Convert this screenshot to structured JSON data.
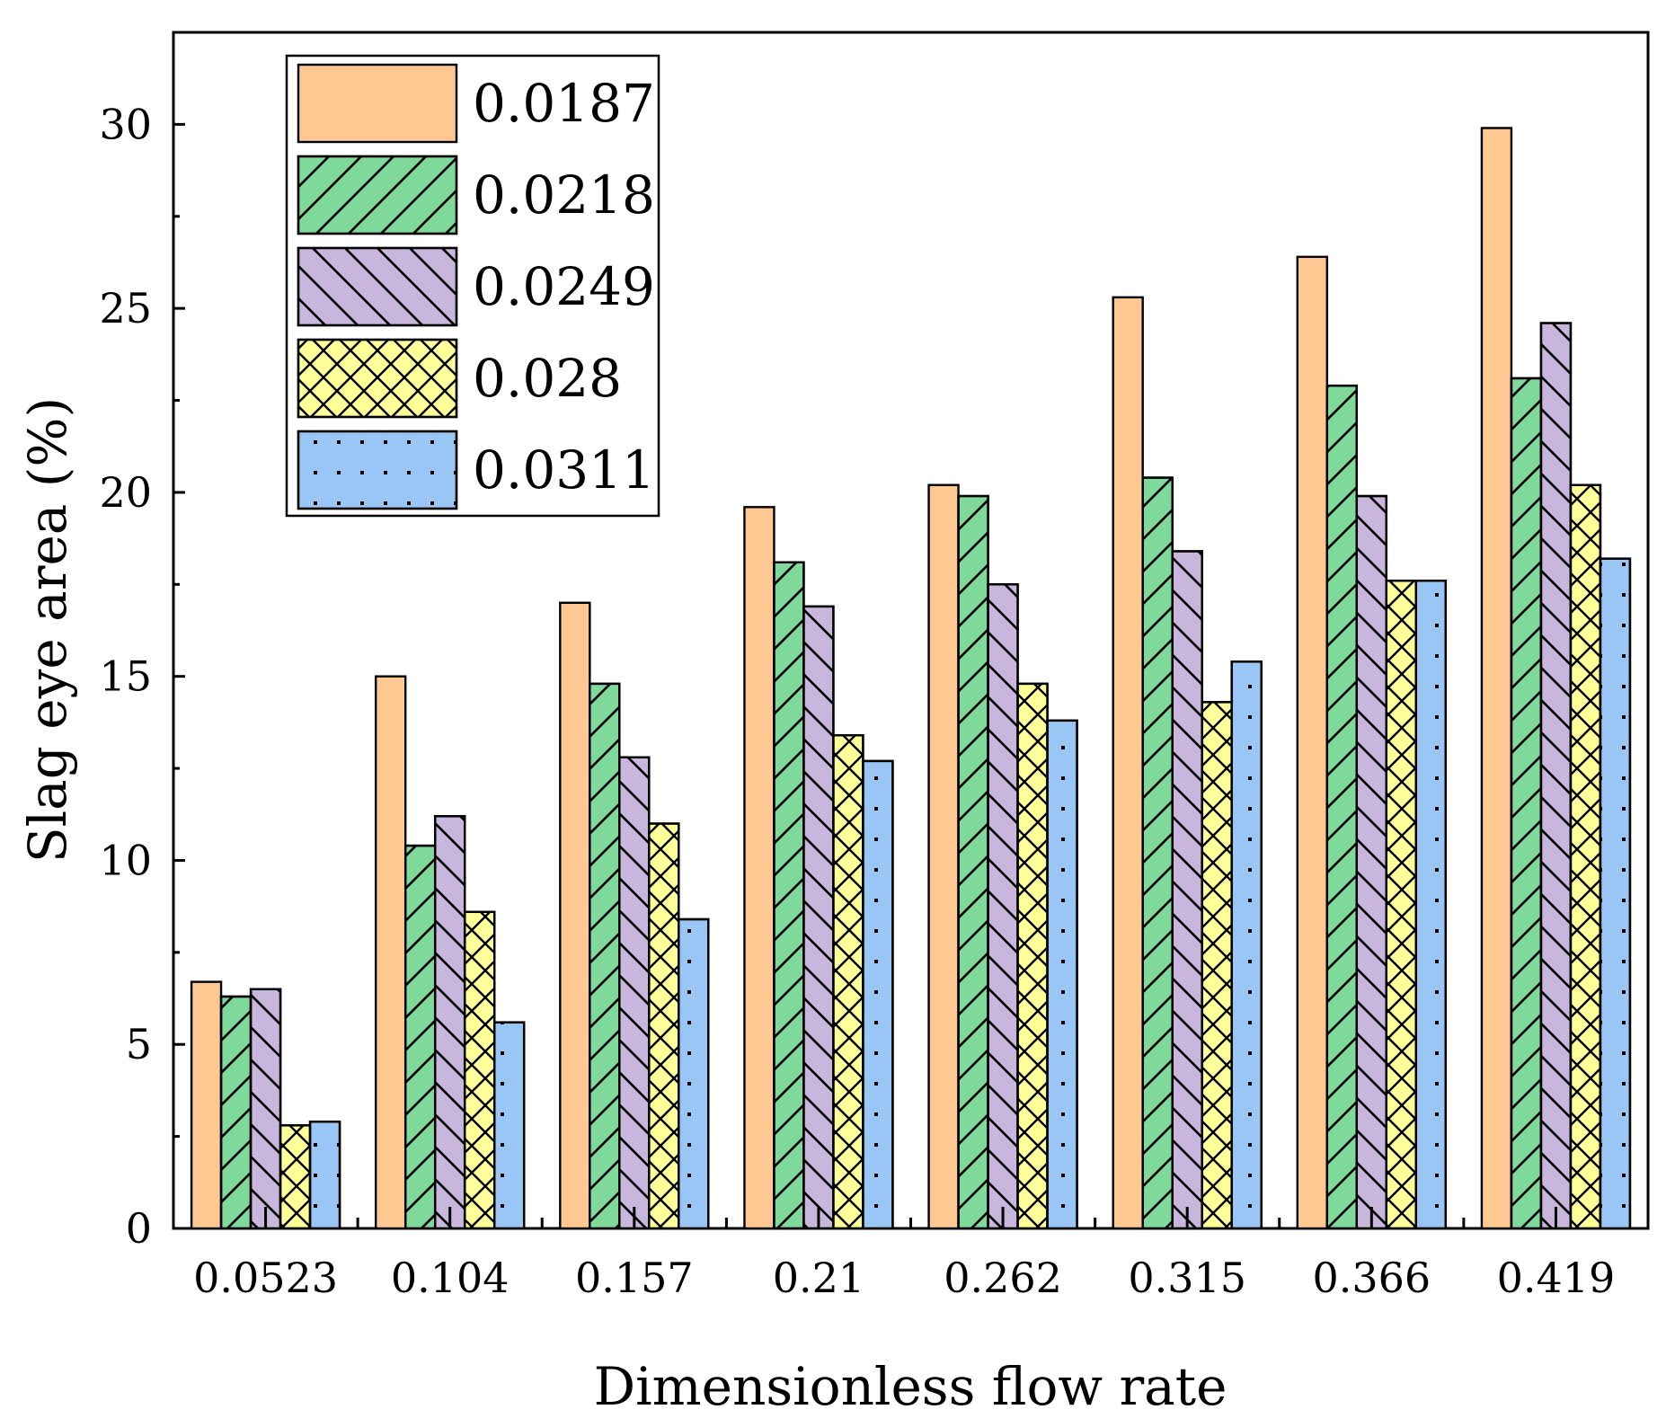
{
  "chart_data": {
    "type": "bar",
    "xlabel": "Dimensionless flow rate",
    "ylabel": "Slag eye area (%)",
    "ylim": [
      0,
      32.5
    ],
    "yticks": [
      0,
      5,
      10,
      15,
      20,
      25,
      30
    ],
    "ytick_labels": [
      "0",
      "5",
      "10",
      "15",
      "20",
      "25",
      "30"
    ],
    "categories": [
      "0.0523",
      "0.104",
      "0.157",
      "0.21",
      "0.262",
      "0.315",
      "0.366",
      "0.419"
    ],
    "legend_position": "top-left",
    "grid": false,
    "series": [
      {
        "name": "0.0187",
        "color": "#ffc892",
        "pattern": "solid",
        "values": [
          6.7,
          15.0,
          17.0,
          19.6,
          20.2,
          25.3,
          26.4,
          29.9
        ]
      },
      {
        "name": "0.0218",
        "color": "#7fd99b",
        "pattern": "forward-diagonal",
        "values": [
          6.3,
          10.4,
          14.8,
          18.1,
          19.9,
          20.4,
          22.9,
          23.1
        ]
      },
      {
        "name": "0.0249",
        "color": "#c8b6dc",
        "pattern": "backward-diagonal",
        "values": [
          6.5,
          11.2,
          12.8,
          16.9,
          17.5,
          18.4,
          19.9,
          24.6
        ]
      },
      {
        "name": "0.028",
        "color": "#ffff99",
        "pattern": "crosshatch",
        "values": [
          2.8,
          8.6,
          11.0,
          13.4,
          14.8,
          14.3,
          17.6,
          20.2
        ]
      },
      {
        "name": "0.0311",
        "color": "#99c6f5",
        "pattern": "dots",
        "values": [
          2.9,
          5.6,
          8.4,
          12.7,
          13.8,
          15.4,
          17.6,
          18.2
        ]
      }
    ]
  }
}
